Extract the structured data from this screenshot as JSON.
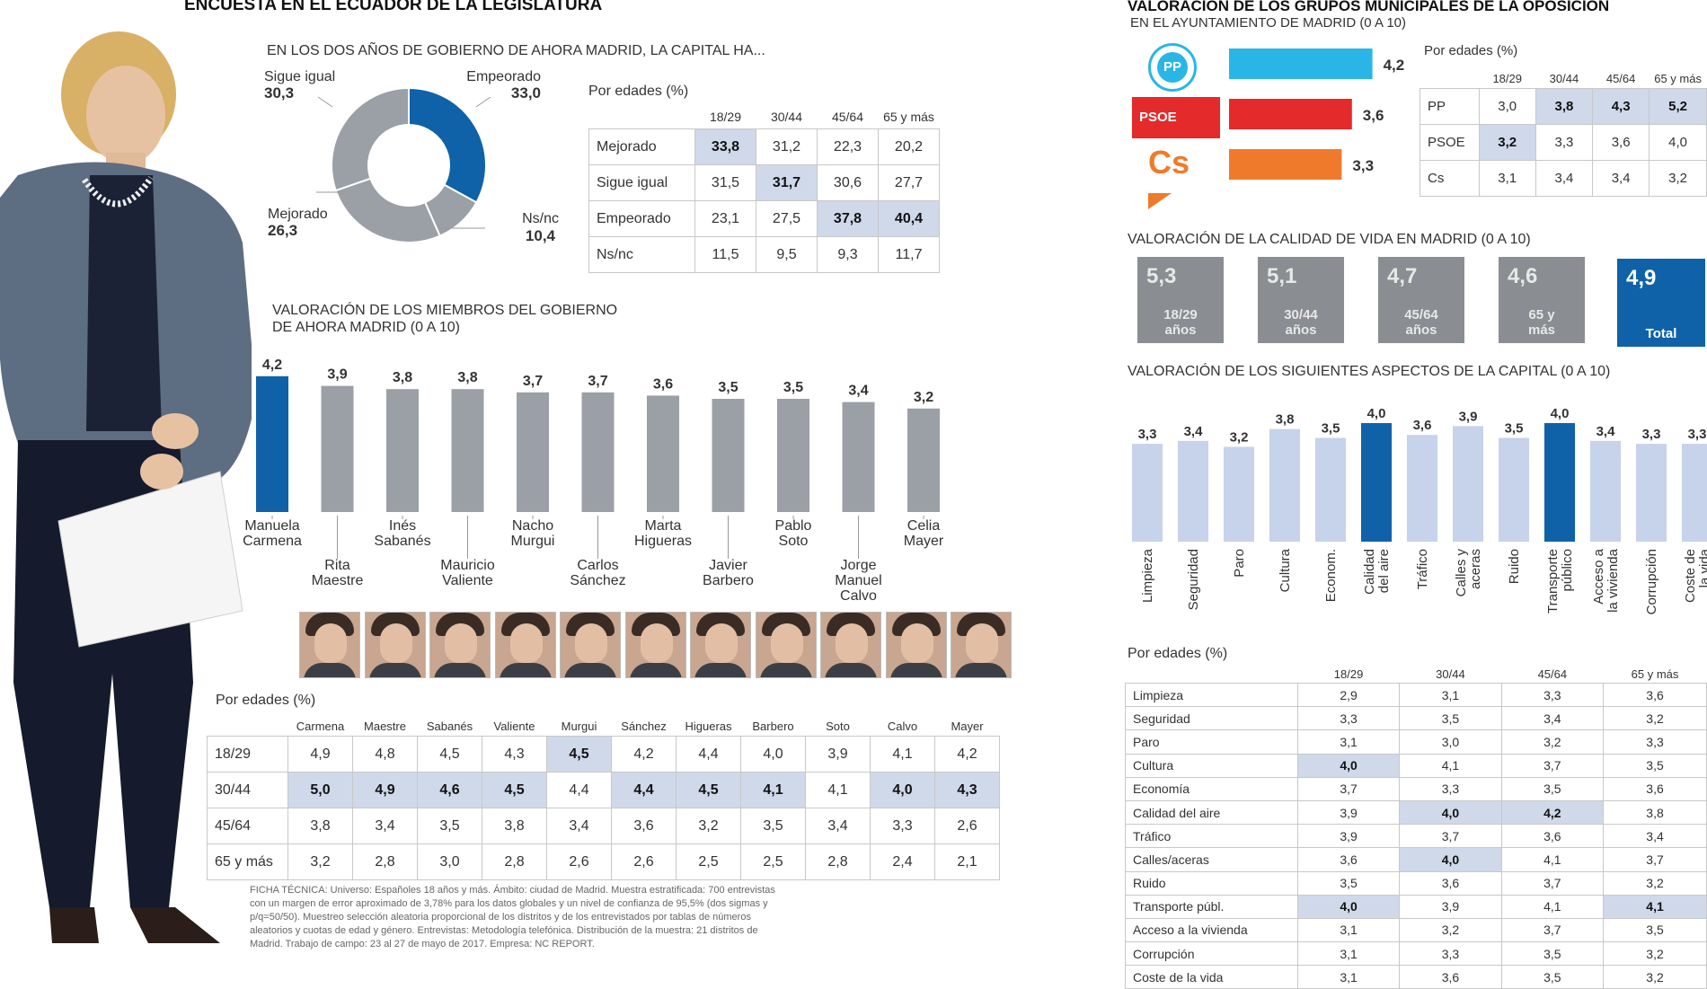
{
  "left": {
    "header": "ENCUESTA EN EL ECUADOR DE LA LEGISLATURA",
    "donut_subtitle": "EN LOS DOS AÑOS DE GOBIERNO DE AHORA MADRID, LA CAPITAL HA...",
    "edades_label": "Por edades (%)",
    "members_title_1": "VALORACIÓN DE LOS MIEMBROS DEL GOBIERNO",
    "members_title_2": "DE AHORA MADRID (0 a 10)",
    "members_edades_label": "Por edades (%)",
    "ficha": [
      "FICHA TÉCNICA: Universo: Españoles 18 años y más. Ámbito: ciudad de Madrid. Muestra estratificada: 700 entrevistas",
      "con un margen de error aproximado de 3,78% para los datos globales y un nivel de confianza de 95,5% (dos sigmas y",
      "p/q=50/50). Muestreo selección aleatoria proporcional de los distritos y de los entrevistados por tablas de números",
      "aleatorios y cuotas de edad y género. Entrevistas: Metodología telefónica. Distribución de la muestra: 21 distritos de",
      "Madrid. Trabajo de campo: 23 al 27 de mayo de 2017. Empresa: NC REPORT."
    ]
  },
  "right": {
    "header": "VALORACIÓN DE LOS GRUPOS MUNICIPALES DE LA OPOSICIÓN",
    "header_sub": "EN EL AYUNTAMIENTO DE MADRID (0 a 10)",
    "party_edades_label": "Por edades (%)",
    "party_logos": {
      "pp": "PP",
      "psoe": "PSOE",
      "cs": "Cs"
    },
    "quality_title": "VALORACIÓN DE LA CALIDAD DE VIDA EN MADRID (0 a 10)",
    "aspects_title": "VALORACIÓN DE LOS SIGUIENTES ASPECTOS DE LA CAPITAL (0 a 10)",
    "aspects_edades_label": "Por edades (%)"
  },
  "colors": {
    "blue": "#0f62a8",
    "grey": "#9aa0a6",
    "lightblue": "#c6d3ea",
    "pp": "#29b6e6",
    "psoe": "#e42a2a",
    "cs": "#f07a2c",
    "highlight": "#cfd9ea"
  },
  "chart_data": [
    {
      "type": "pie",
      "title": "EN LOS DOS AÑOS DE GOBIERNO DE AHORA MADRID, LA CAPITAL HA...",
      "slices": [
        {
          "label": "Empeorado",
          "value": 33.0
        },
        {
          "label": "Ns/nc",
          "value": 10.4
        },
        {
          "label": "Mejorado",
          "value": 26.3
        },
        {
          "label": "Sigue igual",
          "value": 30.3
        }
      ],
      "value_labels": [
        "33,0",
        "10,4",
        "26,3",
        "30,3"
      ]
    },
    {
      "type": "table",
      "title": "Por edades (%)",
      "columns": [
        "18/29",
        "30/44",
        "45/64",
        "65 y más"
      ],
      "rows": [
        {
          "label": "Mejorado",
          "values": [
            "33,8",
            "31,2",
            "22,3",
            "20,2"
          ],
          "highlight": [
            0
          ]
        },
        {
          "label": "Sigue igual",
          "values": [
            "31,5",
            "31,7",
            "30,6",
            "27,7"
          ],
          "highlight": [
            1
          ]
        },
        {
          "label": "Empeorado",
          "values": [
            "23,1",
            "27,5",
            "37,8",
            "40,4"
          ],
          "highlight": [
            2,
            3
          ]
        },
        {
          "label": "Ns/nc",
          "values": [
            "11,5",
            "9,5",
            "9,3",
            "11,7"
          ],
          "highlight": []
        }
      ]
    },
    {
      "type": "bar",
      "title": "VALORACIÓN DE LOS MIEMBROS DEL GOBIERNO DE AHORA MADRID (0 a 10)",
      "categories": [
        "Manuela Carmena",
        "Rita Maestre",
        "Inés Sabanés",
        "Mauricio Valiente",
        "Nacho Murgui",
        "Carlos Sánchez",
        "Marta Higueras",
        "Javier Barbero",
        "Pablo Soto",
        "Jorge Manuel Calvo",
        "Celia Mayer"
      ],
      "label_lines": [
        [
          "Manuela",
          "Carmena"
        ],
        [
          "Rita",
          "Maestre"
        ],
        [
          "Inés",
          "Sabanés"
        ],
        [
          "Mauricio",
          "Valiente"
        ],
        [
          "Nacho",
          "Murgui"
        ],
        [
          "Carlos",
          "Sánchez"
        ],
        [
          "Marta",
          "Higueras"
        ],
        [
          "Javier",
          "Barbero"
        ],
        [
          "Pablo",
          "Soto"
        ],
        [
          "Jorge",
          "Manuel",
          "Calvo"
        ],
        [
          "Celia",
          "Mayer"
        ]
      ],
      "values": [
        4.2,
        3.9,
        3.8,
        3.8,
        3.7,
        3.7,
        3.6,
        3.5,
        3.5,
        3.4,
        3.2
      ],
      "value_labels": [
        "4,2",
        "3,9",
        "3,8",
        "3,8",
        "3,7",
        "3,7",
        "3,6",
        "3,5",
        "3,5",
        "3,4",
        "3,2"
      ],
      "highlight_index": 0
    },
    {
      "type": "table",
      "title": "Por edades (%)",
      "columns": [
        "Carmena",
        "Maestre",
        "Sabanés",
        "Valiente",
        "Murgui",
        "Sánchez",
        "Higueras",
        "Barbero",
        "Soto",
        "Calvo",
        "Mayer"
      ],
      "rows": [
        {
          "label": "18/29",
          "values": [
            "4,9",
            "4,8",
            "4,5",
            "4,3",
            "4,5",
            "4,2",
            "4,4",
            "4,0",
            "3,9",
            "4,1",
            "4,2"
          ],
          "highlight": [
            4
          ]
        },
        {
          "label": "30/44",
          "values": [
            "5,0",
            "4,9",
            "4,6",
            "4,5",
            "4,4",
            "4,4",
            "4,5",
            "4,1",
            "4,1",
            "4,0",
            "4,3"
          ],
          "highlight": [
            0,
            1,
            2,
            3,
            5,
            6,
            7,
            9,
            10
          ]
        },
        {
          "label": "45/64",
          "values": [
            "3,8",
            "3,4",
            "3,5",
            "3,8",
            "3,4",
            "3,6",
            "3,2",
            "3,5",
            "3,4",
            "3,3",
            "2,6"
          ],
          "highlight": []
        },
        {
          "label": "65 y más",
          "values": [
            "3,2",
            "2,8",
            "3,0",
            "2,8",
            "2,6",
            "2,6",
            "2,5",
            "2,5",
            "2,8",
            "2,4",
            "2,1"
          ],
          "highlight": []
        }
      ]
    },
    {
      "type": "bar",
      "title": "VALORACIÓN DE LOS GRUPOS MUNICIPALES DE LA OPOSICIÓN EN EL AYUNTAMIENTO DE MADRID (0 a 10)",
      "categories": [
        "PP",
        "PSOE",
        "Cs"
      ],
      "values": [
        4.2,
        3.6,
        3.3
      ],
      "value_labels": [
        "4,2",
        "3,6",
        "3,3"
      ]
    },
    {
      "type": "table",
      "title": "Por edades (%)",
      "columns": [
        "18/29",
        "30/44",
        "45/64",
        "65 y más"
      ],
      "rows": [
        {
          "label": "PP",
          "values": [
            "3,0",
            "3,8",
            "4,3",
            "5,2"
          ],
          "highlight": [
            1,
            2,
            3
          ]
        },
        {
          "label": "PSOE",
          "values": [
            "3,2",
            "3,3",
            "3,6",
            "4,0"
          ],
          "highlight": [
            0
          ]
        },
        {
          "label": "Cs",
          "values": [
            "3,1",
            "3,4",
            "3,4",
            "3,2"
          ],
          "highlight": []
        }
      ]
    },
    {
      "type": "bar",
      "title": "VALORACIÓN DE LA CALIDAD DE VIDA EN MADRID (0 a 10)",
      "categories": [
        "18/29 años",
        "30/44 años",
        "45/64 años",
        "65 y más",
        "Total"
      ],
      "label_lines": [
        [
          "18/29",
          "años"
        ],
        [
          "30/44",
          "años"
        ],
        [
          "45/64",
          "años"
        ],
        [
          "65 y",
          "más"
        ],
        [
          "Total"
        ]
      ],
      "values": [
        5.3,
        5.1,
        4.7,
        4.6,
        4.9
      ],
      "value_labels": [
        "5,3",
        "5,1",
        "4,7",
        "4,6",
        "4,9"
      ]
    },
    {
      "type": "bar",
      "title": "VALORACIÓN DE LOS SIGUIENTES ASPECTOS DE LA CAPITAL (0 a 10)",
      "categories": [
        "Limpieza",
        "Seguridad",
        "Paro",
        "Cultura",
        "Econom.",
        "Calidad del aire",
        "Tráfico",
        "Calles y aceras",
        "Ruido",
        "Transporte público",
        "Acceso a la vivienda",
        "Corrupción",
        "Coste de la vida"
      ],
      "label_lines": [
        [
          "Limpieza"
        ],
        [
          "Seguridad"
        ],
        [
          "Paro"
        ],
        [
          "Cultura"
        ],
        [
          "Econom."
        ],
        [
          "Calidad",
          "del aire"
        ],
        [
          "Tráfico"
        ],
        [
          "Calles y",
          "aceras"
        ],
        [
          "Ruido"
        ],
        [
          "Transporte",
          "público"
        ],
        [
          "Acceso a",
          "la vivienda"
        ],
        [
          "Corrupción"
        ],
        [
          "Coste de",
          "la vida"
        ]
      ],
      "values": [
        3.3,
        3.4,
        3.2,
        3.8,
        3.5,
        4.0,
        3.6,
        3.9,
        3.5,
        4.0,
        3.4,
        3.3,
        3.3
      ],
      "value_labels": [
        "3,3",
        "3,4",
        "3,2",
        "3,8",
        "3,5",
        "4,0",
        "3,6",
        "3,9",
        "3,5",
        "4,0",
        "3,4",
        "3,3",
        "3,3"
      ],
      "highlight_indices": [
        5,
        9
      ]
    },
    {
      "type": "table",
      "title": "Por edades (%)",
      "columns": [
        "18/29",
        "30/44",
        "45/64",
        "65 y más"
      ],
      "rows": [
        {
          "label": "Limpieza",
          "values": [
            "2,9",
            "3,1",
            "3,3",
            "3,6"
          ],
          "highlight": []
        },
        {
          "label": "Seguridad",
          "values": [
            "3,3",
            "3,5",
            "3,4",
            "3,2"
          ],
          "highlight": []
        },
        {
          "label": "Paro",
          "values": [
            "3,1",
            "3,0",
            "3,2",
            "3,3"
          ],
          "highlight": []
        },
        {
          "label": "Cultura",
          "values": [
            "4,0",
            "4,1",
            "3,7",
            "3,5"
          ],
          "highlight": [
            0
          ]
        },
        {
          "label": "Economía",
          "values": [
            "3,7",
            "3,3",
            "3,5",
            "3,6"
          ],
          "highlight": []
        },
        {
          "label": "Calidad del aire",
          "values": [
            "3,9",
            "4,0",
            "4,2",
            "3,8"
          ],
          "highlight": [
            1,
            2
          ]
        },
        {
          "label": "Tráfico",
          "values": [
            "3,9",
            "3,7",
            "3,6",
            "3,4"
          ],
          "highlight": []
        },
        {
          "label": "Calles/aceras",
          "values": [
            "3,6",
            "4,0",
            "4,1",
            "3,7"
          ],
          "highlight": [
            1
          ]
        },
        {
          "label": "Ruido",
          "values": [
            "3,5",
            "3,6",
            "3,7",
            "3,2"
          ],
          "highlight": []
        },
        {
          "label": "Transporte públ.",
          "values": [
            "4,0",
            "3,9",
            "4,1",
            "4,1"
          ],
          "highlight": [
            0,
            3
          ]
        },
        {
          "label": "Acceso a la vivienda",
          "values": [
            "3,1",
            "3,2",
            "3,7",
            "3,5"
          ],
          "highlight": []
        },
        {
          "label": "Corrupción",
          "values": [
            "3,1",
            "3,3",
            "3,5",
            "3,2"
          ],
          "highlight": []
        },
        {
          "label": "Coste de la vida",
          "values": [
            "3,1",
            "3,6",
            "3,5",
            "3,2"
          ],
          "highlight": []
        }
      ]
    }
  ]
}
